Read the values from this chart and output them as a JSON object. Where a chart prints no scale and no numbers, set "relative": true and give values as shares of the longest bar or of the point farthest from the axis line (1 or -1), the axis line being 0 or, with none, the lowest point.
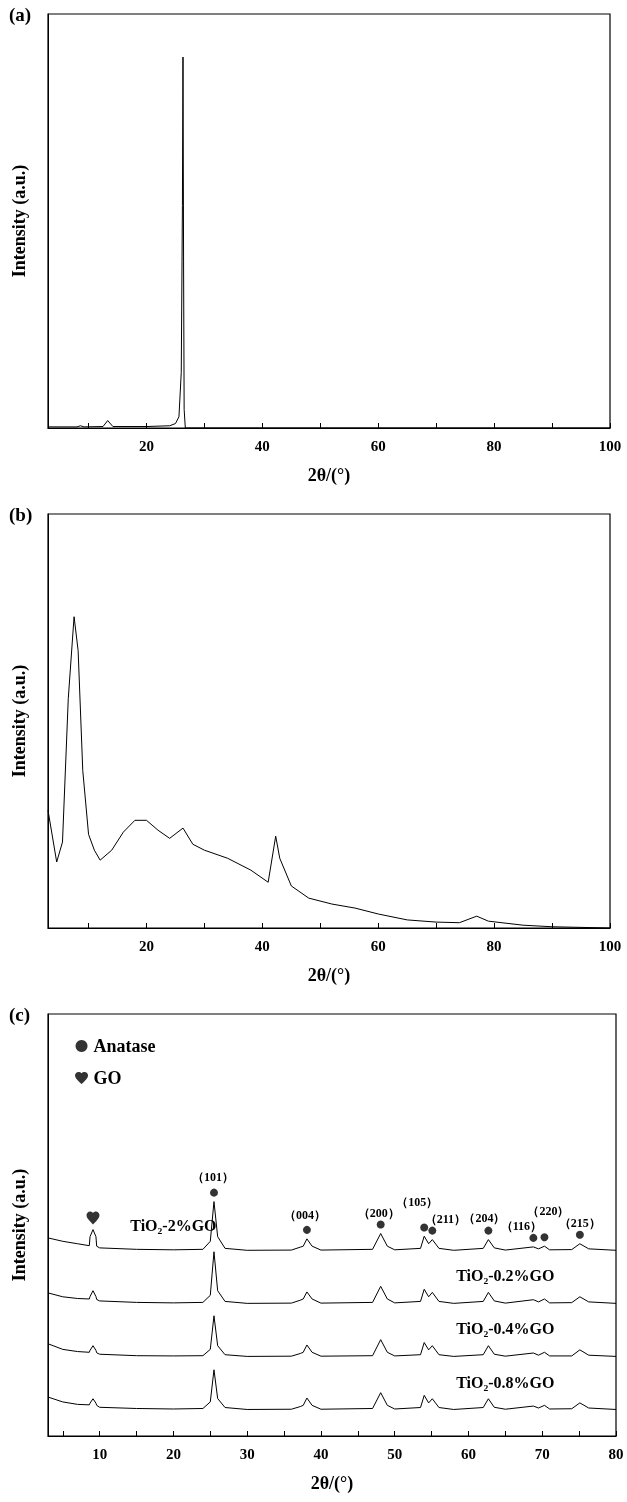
{
  "chart_data": [
    {
      "type": "line",
      "title": "(a)",
      "xlabel": "2θ/(°)",
      "ylabel": "Intensity (a.u.)",
      "relative": true,
      "marker": "none",
      "xlim": [
        3,
        100
      ],
      "xticks": [
        {
          "value": 10,
          "label": null
        },
        20,
        {
          "value": 30,
          "label": null
        },
        40,
        {
          "value": 50,
          "label": null
        },
        60,
        {
          "value": 70,
          "label": null
        },
        80,
        {
          "value": 90,
          "label": null
        },
        100
      ],
      "series": [
        {
          "color": "#000000",
          "x": [
            3,
            8,
            8.6,
            9.2,
            12.5,
            13.3,
            14.2,
            20,
            24,
            25,
            25.6,
            26.0,
            26.2,
            26.3,
            26.4,
            26.5,
            26.7,
            100
          ],
          "values": [
            0.003,
            0.003,
            0.006,
            0.003,
            0.004,
            0.02,
            0.004,
            0.004,
            0.006,
            0.012,
            0.03,
            0.15,
            0.6,
            1,
            0.45,
            0.05,
            0,
            0
          ]
        }
      ]
    },
    {
      "type": "line",
      "title": "(b)",
      "xlabel": "2θ/(°)",
      "ylabel": "Intensity (a.u.)",
      "relative": true,
      "marker": "none",
      "xlim": [
        3,
        100
      ],
      "xticks": [
        {
          "value": 10,
          "label": null
        },
        20,
        {
          "value": 30,
          "label": null
        },
        40,
        {
          "value": 50,
          "label": null
        },
        60,
        {
          "value": 70,
          "label": null
        },
        80,
        {
          "value": 90,
          "label": null
        },
        100
      ],
      "series": [
        {
          "color": "#000000",
          "x": [
            3,
            4.5,
            5.5,
            6.5,
            7.5,
            8.2,
            9,
            10,
            11,
            12,
            14,
            16,
            18,
            20,
            22,
            24,
            26.3,
            28,
            30,
            34,
            38,
            41,
            42.3,
            43,
            45,
            48,
            52,
            56,
            60,
            65,
            70,
            74,
            77,
            79,
            85,
            90,
            100
          ],
          "values": [
            0.378,
            0.212,
            0.276,
            0.737,
            1.0,
            0.891,
            0.506,
            0.301,
            0.25,
            0.218,
            0.25,
            0.308,
            0.346,
            0.346,
            0.314,
            0.288,
            0.321,
            0.269,
            0.25,
            0.224,
            0.186,
            0.147,
            0.295,
            0.224,
            0.135,
            0.096,
            0.077,
            0.064,
            0.045,
            0.026,
            0.019,
            0.017,
            0.038,
            0.022,
            0.009,
            0.004,
            0
          ]
        }
      ]
    },
    {
      "type": "line",
      "title": "(c)",
      "xlabel": "2θ/(°)",
      "ylabel": "Intensity (a.u.)",
      "relative": true,
      "marker": "none",
      "legend": "top left",
      "xlim": [
        3,
        80
      ],
      "xticks": [
        {
          "value": 5,
          "label": null
        },
        10,
        {
          "value": 15,
          "label": null
        },
        20,
        {
          "value": 25,
          "label": null
        },
        30,
        {
          "value": 35,
          "label": null
        },
        40,
        {
          "value": 45,
          "label": null
        },
        50,
        {
          "value": 55,
          "label": null
        },
        60,
        {
          "value": 65,
          "label": null
        },
        70,
        {
          "value": 75,
          "label": null
        },
        80
      ],
      "series": [
        {
          "name": "TiO₂-2%GO",
          "color": "#000000",
          "x": [
            3,
            5,
            7,
            8.6,
            8.7,
            9.1,
            9.5,
            9.6,
            10,
            15,
            20,
            24,
            25,
            25.5,
            26,
            27,
            30,
            36,
            37.2,
            37.6,
            38.1,
            38.8,
            40,
            47,
            48.1,
            49,
            50,
            53.5,
            54,
            54.6,
            55.1,
            56,
            58,
            62,
            62.7,
            63.5,
            65,
            68.8,
            69.5,
            70.3,
            71,
            74,
            75.1,
            76.3,
            80
          ],
          "values": [
            0.814,
            0.8,
            0.79,
            0.782,
            0.819,
            0.848,
            0.819,
            0.78,
            0.773,
            0.767,
            0.765,
            0.767,
            0.8,
            0.963,
            0.819,
            0.771,
            0.763,
            0.764,
            0.776,
            0.78,
            0.81,
            0.78,
            0.764,
            0.767,
            0.832,
            0.78,
            0.765,
            0.771,
            0.821,
            0.79,
            0.807,
            0.771,
            0.763,
            0.771,
            0.807,
            0.773,
            0.764,
            0.777,
            0.769,
            0.78,
            0.765,
            0.766,
            0.79,
            0.769,
            0.763
          ]
        },
        {
          "name": "TiO₂-0.2%GO",
          "color": "#000000",
          "x": [
            3,
            5,
            7,
            8.6,
            8.7,
            9.1,
            9.5,
            9.6,
            10,
            15,
            20,
            24,
            25,
            25.5,
            26,
            27,
            30,
            36,
            37.2,
            37.6,
            38.1,
            38.8,
            40,
            47,
            48.1,
            49,
            50,
            53.5,
            54,
            54.6,
            55.1,
            56,
            58,
            62,
            62.7,
            63.5,
            65,
            68.8,
            69.5,
            70.3,
            71,
            74,
            75.1,
            76.3,
            80
          ],
          "values": [
            0.588,
            0.572,
            0.565,
            0.563,
            0.573,
            0.597,
            0.573,
            0.561,
            0.555,
            0.549,
            0.547,
            0.549,
            0.578,
            0.757,
            0.597,
            0.553,
            0.545,
            0.546,
            0.558,
            0.563,
            0.592,
            0.563,
            0.546,
            0.549,
            0.615,
            0.563,
            0.547,
            0.553,
            0.603,
            0.572,
            0.59,
            0.553,
            0.545,
            0.553,
            0.59,
            0.555,
            0.546,
            0.56,
            0.551,
            0.563,
            0.547,
            0.548,
            0.572,
            0.551,
            0.545
          ]
        },
        {
          "name": "TiO₂-0.4%GO",
          "color": "#000000",
          "x": [
            3,
            5,
            7,
            8.6,
            8.7,
            9.1,
            9.5,
            9.6,
            10,
            15,
            20,
            24,
            25,
            25.5,
            26,
            27,
            30,
            36,
            37.2,
            37.6,
            38.1,
            38.8,
            40,
            47,
            48.1,
            49,
            50,
            53.5,
            54,
            54.6,
            55.1,
            56,
            58,
            62,
            62.7,
            63.5,
            65,
            68.8,
            69.5,
            70.3,
            71,
            74,
            75.1,
            76.3,
            80
          ],
          "values": [
            0.379,
            0.356,
            0.347,
            0.344,
            0.352,
            0.371,
            0.352,
            0.342,
            0.336,
            0.33,
            0.329,
            0.33,
            0.356,
            0.494,
            0.371,
            0.334,
            0.327,
            0.328,
            0.339,
            0.344,
            0.374,
            0.344,
            0.328,
            0.33,
            0.396,
            0.344,
            0.329,
            0.334,
            0.384,
            0.354,
            0.371,
            0.334,
            0.327,
            0.334,
            0.371,
            0.336,
            0.328,
            0.341,
            0.332,
            0.344,
            0.329,
            0.329,
            0.354,
            0.332,
            0.327
          ]
        },
        {
          "name": "TiO₂-0.8%GO",
          "color": "#000000",
          "x": [
            3,
            5,
            7,
            8.6,
            8.7,
            9.1,
            9.5,
            9.6,
            10,
            15,
            20,
            24,
            25,
            25.5,
            26,
            27,
            30,
            36,
            37.2,
            37.6,
            38.1,
            38.8,
            40,
            47,
            48.1,
            49,
            50,
            53.5,
            54,
            54.6,
            55.1,
            56,
            58,
            62,
            62.7,
            63.5,
            65,
            68.8,
            69.5,
            70.3,
            71,
            74,
            75.1,
            76.3,
            80
          ],
          "values": [
            0.16,
            0.14,
            0.13,
            0.128,
            0.135,
            0.153,
            0.135,
            0.126,
            0.118,
            0.113,
            0.111,
            0.113,
            0.14,
            0.272,
            0.154,
            0.117,
            0.109,
            0.11,
            0.121,
            0.126,
            0.156,
            0.126,
            0.11,
            0.113,
            0.178,
            0.126,
            0.111,
            0.117,
            0.167,
            0.136,
            0.153,
            0.117,
            0.109,
            0.117,
            0.153,
            0.118,
            0.11,
            0.123,
            0.115,
            0.126,
            0.111,
            0.112,
            0.136,
            0.115,
            0.109
          ]
        },
        {
          "name": "Anatase",
          "type": "scatter",
          "marker": "circle",
          "color": "#000000",
          "x": [
            25.5,
            38.1,
            48.1,
            54,
            55.1,
            62.7,
            68.8,
            70.3,
            75.1
          ],
          "values": [
            1.0,
            0.847,
            0.869,
            0.857,
            0.844,
            0.844,
            0.814,
            0.817,
            0.827
          ]
        },
        {
          "name": "GO",
          "type": "scatter",
          "color": "#000000",
          "x": [
            9.1
          ],
          "values": [
            0.896
          ]
        }
      ],
      "annotations": [
        {
          "text": "（101）",
          "x": 25.5,
          "y": 0.963
        },
        {
          "text": "（004）",
          "x": 38.1,
          "y": 0.81
        },
        {
          "text": "（200）",
          "x": 48.1,
          "y": 0.832
        },
        {
          "text": "（105）",
          "x": 54,
          "y": 0.821
        },
        {
          "text": "（211）",
          "x": 55.1,
          "y": 0.807
        },
        {
          "text": "（204）",
          "x": 62.7,
          "y": 0.807
        },
        {
          "text": "（116）",
          "x": 68.8,
          "y": 0.777
        },
        {
          "text": "（220）",
          "x": 70.3,
          "y": 0.78
        },
        {
          "text": "（215）",
          "x": 75.1,
          "y": 0.79
        }
      ]
    }
  ]
}
